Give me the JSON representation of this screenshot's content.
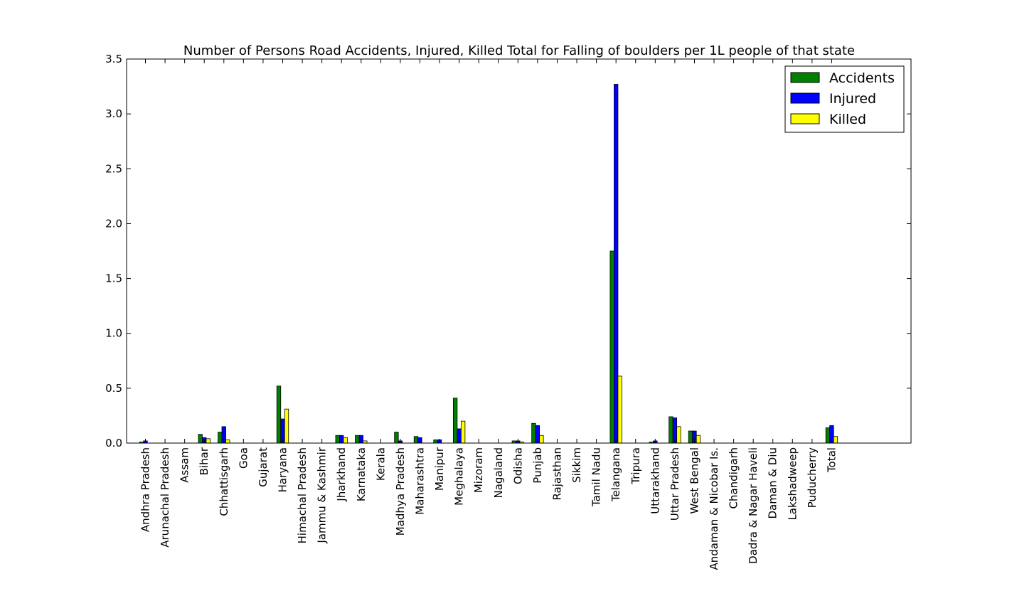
{
  "chart_data": {
    "type": "bar",
    "title": "Number of Persons Road Accidents, Injured, Killed Total for Falling of boulders per 1L people of that state",
    "xlabel": "",
    "ylabel": "",
    "ylim": [
      0,
      3.5
    ],
    "yticks": [
      "0.0",
      "0.5",
      "1.0",
      "1.5",
      "2.0",
      "2.5",
      "3.0",
      "3.5"
    ],
    "grid": false,
    "legend_position": "top-right",
    "categories": [
      "Andhra Pradesh",
      "Arunachal Pradesh",
      "Assam",
      "Bihar",
      "Chhattisgarh",
      "Goa",
      "Gujarat",
      "Haryana",
      "Himachal Pradesh",
      "Jammu & Kashmir",
      "Jharkhand",
      "Karnataka",
      "Kerala",
      "Madhya Pradesh",
      "Maharashtra",
      "Manipur",
      "Meghalaya",
      "Mizoram",
      "Nagaland",
      "Odisha",
      "Punjab",
      "Rajasthan",
      "Sikkim",
      "Tamil Nadu",
      "Telangana",
      "Tripura",
      "Uttarakhand",
      "Uttar Pradesh",
      "West Bengal",
      "Andaman & Nicobar Is.",
      "Chandigarh",
      "Dadra & Nagar Haveli",
      "Daman & Diu",
      "Lakshadweep",
      "Puducherry",
      "Total"
    ],
    "series": [
      {
        "name": "Accidents",
        "color": "#008000",
        "values": [
          0.01,
          0,
          0,
          0.08,
          0.1,
          0,
          0,
          0.52,
          0,
          0,
          0.07,
          0.07,
          0,
          0.1,
          0.06,
          0.03,
          0.41,
          0,
          0,
          0.02,
          0.18,
          0,
          0,
          0,
          1.75,
          0,
          0.01,
          0.24,
          0.11,
          0,
          0,
          0,
          0,
          0,
          0,
          0.14
        ]
      },
      {
        "name": "Injured",
        "color": "#0000ff",
        "values": [
          0.02,
          0,
          0,
          0.05,
          0.15,
          0,
          0,
          0.22,
          0,
          0,
          0.07,
          0.07,
          0,
          0.02,
          0.05,
          0.03,
          0.13,
          0,
          0,
          0.02,
          0.16,
          0,
          0,
          0,
          3.27,
          0,
          0.02,
          0.23,
          0.11,
          0,
          0,
          0,
          0,
          0,
          0,
          0.16
        ]
      },
      {
        "name": "Killed",
        "color": "#ffff00",
        "values": [
          0,
          0,
          0,
          0.04,
          0.03,
          0,
          0,
          0.31,
          0,
          0,
          0.05,
          0.02,
          0,
          0,
          0,
          0,
          0.2,
          0,
          0,
          0.01,
          0.07,
          0,
          0,
          0,
          0.61,
          0,
          0,
          0.15,
          0.07,
          0,
          0,
          0,
          0,
          0,
          0,
          0.06
        ]
      }
    ]
  }
}
